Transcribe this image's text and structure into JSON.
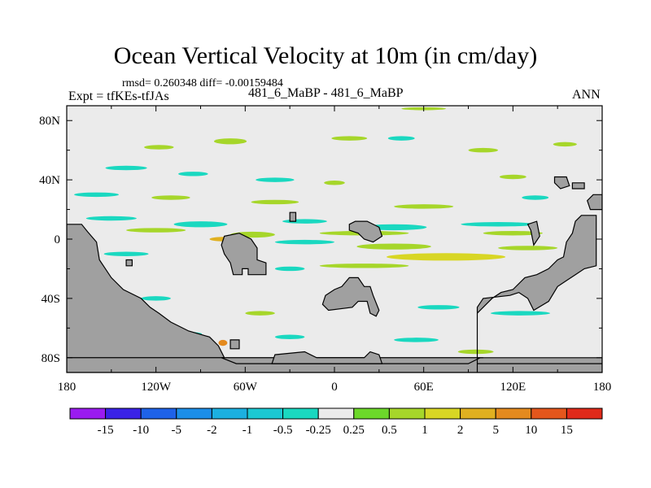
{
  "chart_data": {
    "type": "heatmap",
    "title": "Ocean Vertical Velocity at 10m (in cm/day)",
    "stats_line": "rmsd= 0.260348 diff= -0.00159484",
    "left_label": "Expt = tfKEs-tfJAs",
    "center_label": "481_6_MaBP - 481_6_MaBP",
    "right_label": "ANN",
    "x_ticks": [
      "180",
      "120W",
      "60W",
      "0",
      "60E",
      "120E",
      "180"
    ],
    "x_tick_values": [
      -180,
      -120,
      -60,
      0,
      60,
      120,
      180
    ],
    "y_ticks": [
      "80N",
      "40N",
      "0",
      "40S",
      "80S"
    ],
    "y_tick_values": [
      80,
      40,
      0,
      -40,
      -80
    ],
    "xlim": [
      -180,
      180
    ],
    "ylim": [
      -90,
      90
    ],
    "colorbar_labels": [
      "-15",
      "-10",
      "-5",
      "-2",
      "-1",
      "-0.5",
      "-0.25",
      "0.25",
      "0.5",
      "1",
      "2",
      "5",
      "10",
      "15"
    ],
    "colorbar_colors": [
      "#9a1bf0",
      "#3a22e6",
      "#1e62e8",
      "#1c8ee8",
      "#1cb0e0",
      "#1cc8d2",
      "#1ad8c0",
      "#ebebeb",
      "#6cd82a",
      "#a6d62a",
      "#d8d624",
      "#e0b020",
      "#e48a1e",
      "#e4561c",
      "#e02a1a"
    ],
    "background_color": "#ebebeb",
    "land_color": "#a0a0a0",
    "anomaly_patches": [
      {
        "lon": -118,
        "lat": 62,
        "w": 20,
        "h": 3,
        "level": "0.5"
      },
      {
        "lon": -70,
        "lat": 66,
        "w": 22,
        "h": 4,
        "level": "0.5"
      },
      {
        "lon": 10,
        "lat": 68,
        "w": 24,
        "h": 3,
        "level": "0.5"
      },
      {
        "lon": 45,
        "lat": 68,
        "w": 18,
        "h": 3,
        "level": "-0.25"
      },
      {
        "lon": 100,
        "lat": 60,
        "w": 20,
        "h": 3,
        "level": "0.5"
      },
      {
        "lon": 155,
        "lat": 64,
        "w": 16,
        "h": 3,
        "level": "0.5"
      },
      {
        "lon": 60,
        "lat": 88,
        "w": 30,
        "h": 2,
        "level": "0.5"
      },
      {
        "lon": -140,
        "lat": 48,
        "w": 28,
        "h": 3,
        "level": "-0.25"
      },
      {
        "lon": -95,
        "lat": 44,
        "w": 20,
        "h": 3,
        "level": "-0.25"
      },
      {
        "lon": -40,
        "lat": 40,
        "w": 26,
        "h": 3,
        "level": "-0.25"
      },
      {
        "lon": 0,
        "lat": 38,
        "w": 14,
        "h": 3,
        "level": "0.5"
      },
      {
        "lon": 120,
        "lat": 42,
        "w": 18,
        "h": 3,
        "level": "0.5"
      },
      {
        "lon": -160,
        "lat": 30,
        "w": 30,
        "h": 3,
        "level": "-0.25"
      },
      {
        "lon": -110,
        "lat": 28,
        "w": 26,
        "h": 3,
        "level": "0.5"
      },
      {
        "lon": -40,
        "lat": 25,
        "w": 32,
        "h": 3,
        "level": "0.5"
      },
      {
        "lon": 60,
        "lat": 22,
        "w": 40,
        "h": 3,
        "level": "0.5"
      },
      {
        "lon": 135,
        "lat": 28,
        "w": 18,
        "h": 3,
        "level": "-0.25"
      },
      {
        "lon": -150,
        "lat": 14,
        "w": 34,
        "h": 3,
        "level": "-0.25"
      },
      {
        "lon": -90,
        "lat": 10,
        "w": 36,
        "h": 4,
        "level": "-0.25"
      },
      {
        "lon": -20,
        "lat": 12,
        "w": 30,
        "h": 3,
        "level": "-0.25"
      },
      {
        "lon": 40,
        "lat": 8,
        "w": 44,
        "h": 4,
        "level": "-0.25"
      },
      {
        "lon": 110,
        "lat": 10,
        "w": 50,
        "h": 3,
        "level": "-0.25"
      },
      {
        "lon": -120,
        "lat": 6,
        "w": 40,
        "h": 3,
        "level": "0.5"
      },
      {
        "lon": -55,
        "lat": 3,
        "w": 30,
        "h": 4,
        "level": "0.5"
      },
      {
        "lon": 20,
        "lat": 4,
        "w": 60,
        "h": 3,
        "level": "0.5"
      },
      {
        "lon": 120,
        "lat": 4,
        "w": 40,
        "h": 3,
        "level": "0.5"
      },
      {
        "lon": -75,
        "lat": 0,
        "w": 18,
        "h": 3,
        "level": "2"
      },
      {
        "lon": -20,
        "lat": -2,
        "w": 40,
        "h": 3,
        "level": "-0.25"
      },
      {
        "lon": 40,
        "lat": -5,
        "w": 50,
        "h": 4,
        "level": "0.5"
      },
      {
        "lon": 75,
        "lat": -12,
        "w": 80,
        "h": 5,
        "level": "1"
      },
      {
        "lon": 130,
        "lat": -6,
        "w": 40,
        "h": 3,
        "level": "0.5"
      },
      {
        "lon": -140,
        "lat": -10,
        "w": 30,
        "h": 3,
        "level": "-0.25"
      },
      {
        "lon": 20,
        "lat": -18,
        "w": 60,
        "h": 3,
        "level": "0.5"
      },
      {
        "lon": -30,
        "lat": -20,
        "w": 20,
        "h": 3,
        "level": "-0.25"
      },
      {
        "lon": 150,
        "lat": -24,
        "w": 20,
        "h": 3,
        "level": "0.5"
      },
      {
        "lon": -120,
        "lat": -40,
        "w": 20,
        "h": 3,
        "level": "-0.25"
      },
      {
        "lon": 70,
        "lat": -46,
        "w": 28,
        "h": 3,
        "level": "-0.25"
      },
      {
        "lon": -50,
        "lat": -50,
        "w": 20,
        "h": 3,
        "level": "0.5"
      },
      {
        "lon": 125,
        "lat": -50,
        "w": 40,
        "h": 3,
        "level": "-0.25"
      },
      {
        "lon": -100,
        "lat": -64,
        "w": 22,
        "h": 3,
        "level": "-0.25"
      },
      {
        "lon": -30,
        "lat": -66,
        "w": 20,
        "h": 3,
        "level": "-0.25"
      },
      {
        "lon": 55,
        "lat": -68,
        "w": 30,
        "h": 3,
        "level": "-0.25"
      },
      {
        "lon": 95,
        "lat": -76,
        "w": 24,
        "h": 3,
        "level": "0.5"
      },
      {
        "lon": -75,
        "lat": -70,
        "w": 6,
        "h": 4,
        "level": "5"
      },
      {
        "lon": -60,
        "lat": -82,
        "w": 20,
        "h": 3,
        "level": "0.5"
      },
      {
        "lon": 20,
        "lat": -82,
        "w": 30,
        "h": 3,
        "level": "-0.25"
      }
    ],
    "land_polygons": [
      [
        [
          -180,
          10
        ],
        [
          -170,
          10
        ],
        [
          -166,
          5
        ],
        [
          -160,
          -2
        ],
        [
          -158,
          -14
        ],
        [
          -150,
          -26
        ],
        [
          -142,
          -34
        ],
        [
          -130,
          -40
        ],
        [
          -124,
          -46
        ],
        [
          -118,
          -50
        ],
        [
          -110,
          -56
        ],
        [
          -98,
          -62
        ],
        [
          -84,
          -66
        ],
        [
          -78,
          -72
        ],
        [
          -74,
          -80
        ],
        [
          -180,
          -80
        ]
      ],
      [
        [
          -180,
          -80
        ],
        [
          180,
          -80
        ],
        [
          180,
          -90
        ],
        [
          -180,
          -90
        ]
      ],
      [
        [
          -76,
          -80
        ],
        [
          -66,
          -84
        ],
        [
          90,
          -84
        ],
        [
          98,
          -80
        ],
        [
          100,
          -80
        ]
      ],
      [
        [
          -70,
          -74
        ],
        [
          -64,
          -74
        ],
        [
          -64,
          -68
        ],
        [
          -70,
          -68
        ]
      ],
      [
        [
          -74,
          2
        ],
        [
          -64,
          4
        ],
        [
          -56,
          0
        ],
        [
          -52,
          -6
        ],
        [
          -52,
          -14
        ],
        [
          -46,
          -16
        ],
        [
          -46,
          -24
        ],
        [
          -58,
          -24
        ],
        [
          -58,
          -20
        ],
        [
          -62,
          -20
        ],
        [
          -62,
          -24
        ],
        [
          -68,
          -24
        ],
        [
          -70,
          -16
        ],
        [
          -74,
          -10
        ],
        [
          -76,
          -4
        ]
      ],
      [
        [
          -42,
          -84
        ],
        [
          -40,
          -78
        ],
        [
          -20,
          -76
        ],
        [
          -12,
          -80
        ],
        [
          20,
          -80
        ],
        [
          24,
          -76
        ],
        [
          30,
          -78
        ],
        [
          32,
          -84
        ]
      ],
      [
        [
          5,
          -32
        ],
        [
          10,
          -26
        ],
        [
          16,
          -26
        ],
        [
          20,
          -32
        ],
        [
          24,
          -32
        ],
        [
          26,
          -38
        ],
        [
          30,
          -48
        ],
        [
          28,
          -52
        ],
        [
          24,
          -50
        ],
        [
          22,
          -42
        ],
        [
          16,
          -42
        ],
        [
          12,
          -46
        ],
        [
          -4,
          -48
        ],
        [
          -8,
          -44
        ],
        [
          -6,
          -38
        ],
        [
          0,
          -34
        ]
      ],
      [
        [
          10,
          10
        ],
        [
          14,
          12
        ],
        [
          22,
          12
        ],
        [
          30,
          8
        ],
        [
          32,
          2
        ],
        [
          26,
          -2
        ],
        [
          20,
          0
        ],
        [
          16,
          4
        ],
        [
          10,
          6
        ]
      ],
      [
        [
          96,
          -46
        ],
        [
          100,
          -40
        ],
        [
          118,
          -38
        ],
        [
          124,
          -36
        ],
        [
          130,
          -40
        ],
        [
          134,
          -48
        ],
        [
          144,
          -42
        ],
        [
          150,
          -32
        ],
        [
          156,
          -28
        ],
        [
          162,
          -24
        ],
        [
          168,
          -20
        ],
        [
          176,
          -18
        ],
        [
          176,
          16
        ],
        [
          166,
          16
        ],
        [
          162,
          12
        ],
        [
          160,
          4
        ],
        [
          156,
          -2
        ],
        [
          154,
          -12
        ],
        [
          150,
          -14
        ],
        [
          144,
          -20
        ],
        [
          136,
          -24
        ],
        [
          128,
          -26
        ],
        [
          120,
          -34
        ],
        [
          112,
          -36
        ],
        [
          106,
          -40
        ],
        [
          100,
          -46
        ],
        [
          96,
          -50
        ],
        [
          96,
          -84
        ],
        [
          180,
          -84
        ],
        [
          180,
          -90
        ],
        [
          96,
          -90
        ]
      ],
      [
        [
          130,
          10
        ],
        [
          136,
          12
        ],
        [
          138,
          2
        ],
        [
          134,
          -4
        ],
        [
          132,
          6
        ]
      ],
      [
        [
          148,
          42
        ],
        [
          156,
          42
        ],
        [
          158,
          36
        ],
        [
          152,
          34
        ],
        [
          148,
          38
        ]
      ],
      [
        [
          160,
          38
        ],
        [
          168,
          38
        ],
        [
          168,
          34
        ],
        [
          160,
          34
        ]
      ],
      [
        [
          174,
          30
        ],
        [
          180,
          30
        ],
        [
          180,
          20
        ],
        [
          172,
          20
        ],
        [
          170,
          26
        ]
      ],
      [
        [
          -140,
          -14
        ],
        [
          -136,
          -14
        ],
        [
          -136,
          -18
        ],
        [
          -140,
          -18
        ]
      ],
      [
        [
          -30,
          18
        ],
        [
          -26,
          18
        ],
        [
          -26,
          12
        ],
        [
          -30,
          12
        ]
      ]
    ]
  }
}
